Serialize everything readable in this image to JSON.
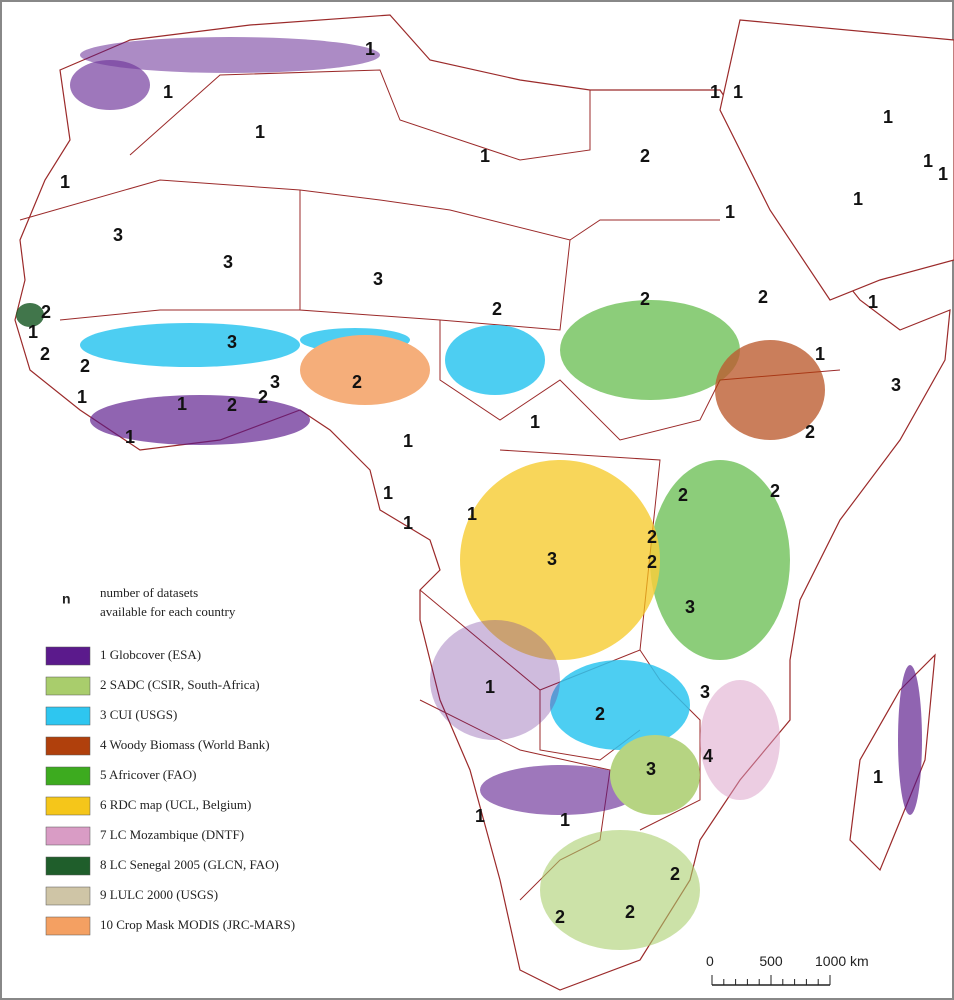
{
  "legend": {
    "key_symbol": "n",
    "key_text": [
      "number of datasets",
      "available for each country"
    ],
    "items": [
      {
        "label": "1 Globcover (ESA)",
        "color": "#5b1a8c"
      },
      {
        "label": "2 SADC (CSIR, South-Africa)",
        "color": "#a9cd6c"
      },
      {
        "label": "3 CUI (USGS)",
        "color": "#2ec6f0"
      },
      {
        "label": "4 Woody Biomass (World Bank)",
        "color": "#b0400c"
      },
      {
        "label": "5 Africover (FAO)",
        "color": "#3dab1f"
      },
      {
        "label": "6 RDC map (UCL, Belgium)",
        "color": "#f5c61a"
      },
      {
        "label": "7 LC Mozambique (DNTF)",
        "color": "#d99cc5"
      },
      {
        "label": "8 LC Senegal 2005 (GLCN, FAO)",
        "color": "#1f5e2b"
      },
      {
        "label": "9 LULC 2000 (USGS)",
        "color": "#cfc5a6"
      },
      {
        "label": "10 Crop Mask MODIS (JRC-MARS)",
        "color": "#f4a062"
      }
    ]
  },
  "country_labels": [
    "1",
    "1",
    "1",
    "1",
    "2",
    "1",
    "1",
    "1",
    "1",
    "1",
    "1",
    "1",
    "1",
    "3",
    "3",
    "3",
    "2",
    "2",
    "2",
    "1",
    "1",
    "3",
    "2",
    "2",
    "1",
    "2",
    "2",
    "3",
    "2",
    "3",
    "2",
    "2",
    "1",
    "1",
    "1",
    "1",
    "1",
    "1",
    "1",
    "1",
    "2",
    "2",
    "2",
    "2",
    "3",
    "3",
    "1",
    "2",
    "3",
    "4",
    "3",
    "1",
    "1",
    "1",
    "2",
    "2",
    "2"
  ],
  "scale_bar": {
    "labels": [
      "0",
      "500",
      "1000 km"
    ]
  }
}
